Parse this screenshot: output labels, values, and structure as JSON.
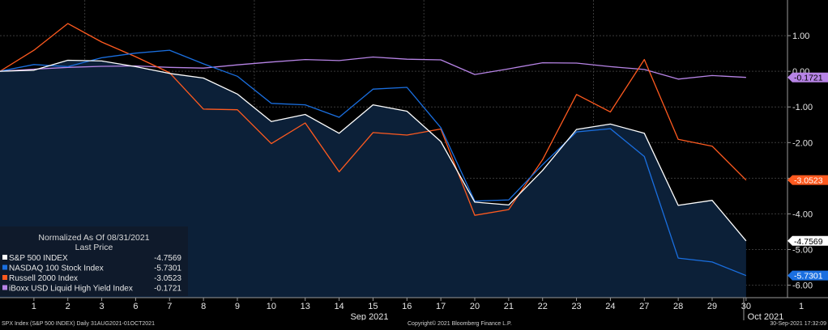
{
  "chart_data": {
    "type": "line",
    "title": "",
    "x": [
      "1",
      "2",
      "3",
      "6",
      "7",
      "8",
      "9",
      "10",
      "13",
      "14",
      "15",
      "16",
      "17",
      "20",
      "21",
      "22",
      "23",
      "24",
      "27",
      "28",
      "29",
      "30"
    ],
    "x_group_labels": [
      "Sep 2021",
      "Oct 2021"
    ],
    "x_extra_tick": "1",
    "ylim": [
      -6.35,
      2.0
    ],
    "y_ticks": [
      {
        "value": 1,
        "label": "1.00"
      },
      {
        "value": 0,
        "label": "0.00"
      },
      {
        "value": -1,
        "label": "-1.00"
      },
      {
        "value": -2,
        "label": "-2.00"
      },
      {
        "value": -3,
        "label": "-3.00"
      },
      {
        "value": -4,
        "label": "-4.00"
      },
      {
        "value": -5,
        "label": "-5.00"
      },
      {
        "value": -6,
        "label": "-6.00"
      }
    ],
    "grid": true,
    "background": "#000000",
    "legend": {
      "position": "bottom-left",
      "title_line1": "Normalized As Of 08/31/2021",
      "title_line2": "Last Price"
    },
    "series": [
      {
        "name": "S&P 500 INDEX",
        "color": "#ffffff",
        "filled": true,
        "fill_color": "#0c2038",
        "last_label": "-4.7569",
        "last_value": -4.7569,
        "values": [
          0.03,
          0.31,
          0.29,
          0.13,
          -0.06,
          -0.19,
          -0.64,
          -1.41,
          -1.21,
          -1.74,
          -0.94,
          -1.12,
          -1.97,
          -3.67,
          -3.75,
          -2.78,
          -1.63,
          -1.48,
          -1.74,
          -3.76,
          -3.62,
          -4.7569
        ]
      },
      {
        "name": "NASDAQ 100 Stock Index",
        "color": "#1a6fe0",
        "filled": false,
        "last_label": "-5.7301",
        "last_value": -5.7301,
        "values": [
          0.19,
          0.13,
          0.38,
          0.51,
          0.59,
          0.21,
          -0.14,
          -0.9,
          -0.94,
          -1.29,
          -0.5,
          -0.45,
          -1.58,
          -3.64,
          -3.61,
          -2.62,
          -1.7,
          -1.61,
          -2.39,
          -5.24,
          -5.35,
          -5.7301
        ]
      },
      {
        "name": "Russell 2000 Index",
        "color": "#ff5a1f",
        "filled": false,
        "last_label": "-3.0523",
        "last_value": -3.0523,
        "values": [
          0.59,
          1.34,
          0.82,
          0.41,
          -0.04,
          -1.06,
          -1.08,
          -2.03,
          -1.45,
          -2.82,
          -1.72,
          -1.79,
          -1.62,
          -4.04,
          -3.88,
          -2.48,
          -0.65,
          -1.14,
          0.33,
          -1.91,
          -2.1,
          -3.0523
        ]
      },
      {
        "name": "iBoxx USD Liquid High Yield Index",
        "color": "#b784e6",
        "filled": false,
        "last_label": "-0.1721",
        "last_value": -0.1721,
        "values": [
          0.06,
          0.11,
          0.14,
          0.15,
          0.11,
          0.09,
          0.18,
          0.26,
          0.33,
          0.3,
          0.4,
          0.34,
          0.32,
          -0.09,
          0.07,
          0.24,
          0.23,
          0.13,
          0.05,
          -0.22,
          -0.12,
          -0.1721
        ]
      }
    ]
  },
  "footer": {
    "left": "SPX Index (S&P 500 INDEX)  Daily 31AUG2021-01OCT2021",
    "center": "Copyright© 2021 Bloomberg Finance L.P.",
    "right": "30-Sep-2021 17:32:09"
  }
}
